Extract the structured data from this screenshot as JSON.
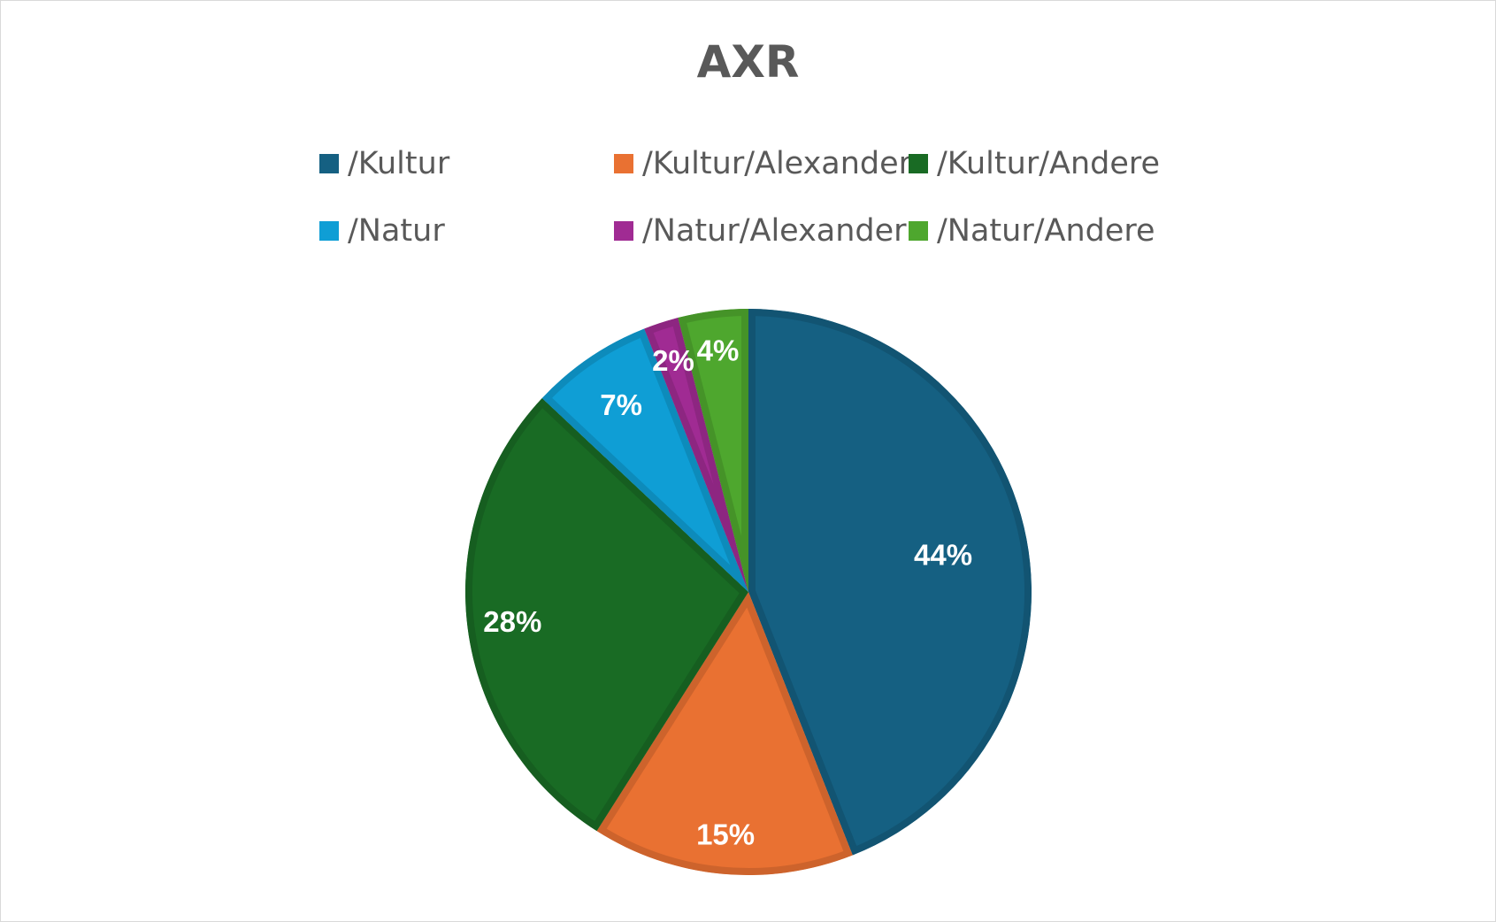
{
  "chart_data": {
    "type": "pie",
    "title": "AXR",
    "legend_position": "top",
    "slices": [
      {
        "label": "/Kultur",
        "value": 44,
        "data_label": "44%",
        "color": "#156082"
      },
      {
        "label": "/Kultur/Alexander",
        "value": 15,
        "data_label": "15%",
        "color": "#E97132"
      },
      {
        "label": "/Kultur/Andere",
        "value": 28,
        "data_label": "28%",
        "color": "#196B24"
      },
      {
        "label": "/Natur",
        "value": 7,
        "data_label": "7%",
        "color": "#0F9ED5"
      },
      {
        "label": "/Natur/Alexander",
        "value": 2,
        "data_label": "2%",
        "color": "#A02B93"
      },
      {
        "label": "/Natur/Andere",
        "value": 4,
        "data_label": "4%",
        "color": "#4EA72E"
      }
    ]
  }
}
